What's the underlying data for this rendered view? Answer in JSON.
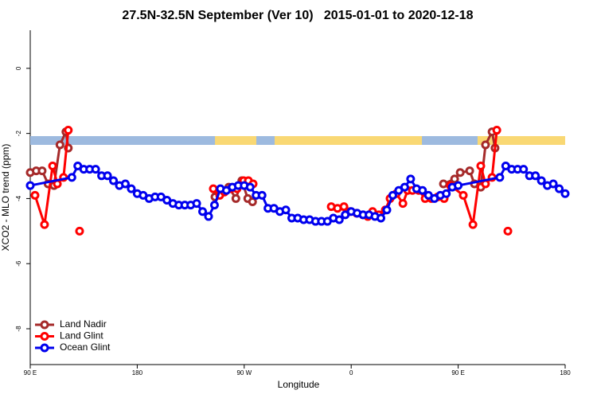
{
  "chart_data": {
    "type": "line",
    "title": "27.5N-32.5N September (Ver 10)   2015-01-01 to 2020-12-18",
    "xlabel": "Longitude",
    "ylabel": "XCO2 - MLO trend (ppm)",
    "xlim": [
      90,
      540
    ],
    "ylim": [
      -9.1,
      1.17
    ],
    "xticks": [
      {
        "value": 90,
        "label": "90 E"
      },
      180,
      {
        "value": 270,
        "label": "90 W"
      },
      {
        "value": 360,
        "label": "0"
      },
      {
        "value": 450,
        "label": "90 E"
      },
      {
        "value": 540,
        "label": "180"
      }
    ],
    "yticks": [
      0,
      -2,
      -4,
      -6,
      -8
    ],
    "legend": "bottom-left",
    "ocean_color": "#9dbadf",
    "land_color": "#f9d874",
    "land_spans": [
      [
        245.4,
        280.2
      ],
      [
        295.6,
        419.5
      ],
      [
        466.3,
        540
      ]
    ],
    "series": [
      {
        "name": "Land Nadir",
        "color": "#a52a2a",
        "x": [
          90,
          95,
          100,
          105,
          110,
          115,
          120,
          122,
          null,
          245.4,
          250,
          257,
          263,
          268,
          273,
          277,
          null,
          437.6,
          447,
          451.7,
          459.7,
          463.7,
          469,
          473,
          478.5,
          481
        ],
        "values": [
          -3.2,
          -3.15,
          -3.15,
          -3.55,
          -3.6,
          -2.35,
          -1.95,
          -2.45,
          null,
          -3.95,
          -3.75,
          -3.65,
          -4.0,
          -3.45,
          -4.0,
          -4.1,
          null,
          -3.55,
          -3.4,
          -3.2,
          -3.15,
          -3.55,
          -3.65,
          -2.35,
          -1.95,
          -2.45
        ]
      },
      {
        "name": "Land Glint",
        "color": "#ff0000",
        "x": [
          94,
          102,
          108.8,
          112.8,
          118,
          122,
          null,
          131.5,
          null,
          244,
          249.4,
          253.4,
          258.8,
          264,
          269.5,
          273.5,
          277.5,
          null,
          343.2,
          348.5,
          353.9,
          359.2,
          364.6,
          369.9,
          374,
          378,
          383.3,
          388.7,
          392.7,
          398,
          403.5,
          407.5,
          411.5,
          416.8,
          422.2,
          427.5,
          432.8,
          438.2,
          443.5,
          454.3,
          462.4,
          469,
          473,
          478.5,
          482.5,
          null,
          491.8
        ],
        "values": [
          -3.9,
          -4.8,
          -3.0,
          -3.55,
          -3.35,
          -1.9,
          null,
          -5.0,
          null,
          -3.7,
          -3.9,
          -3.8,
          -3.7,
          -3.7,
          -3.45,
          -3.45,
          -3.55,
          null,
          -4.25,
          -4.3,
          -4.25,
          -4.4,
          -4.45,
          -4.5,
          -4.55,
          -4.4,
          -4.5,
          -4.35,
          -4.0,
          -3.85,
          -4.15,
          -3.75,
          -3.75,
          -3.75,
          -4.0,
          -4.0,
          -3.95,
          -4.0,
          -3.6,
          -3.9,
          -4.8,
          -3.0,
          -3.55,
          -3.35,
          -1.9,
          null,
          -5.0
        ]
      },
      {
        "name": "Ocean Glint",
        "color": "#0000ee",
        "x": [
          90,
          125,
          130,
          135,
          140,
          145,
          150,
          155,
          160,
          165,
          170,
          175,
          180,
          185,
          190,
          195,
          200,
          205,
          210,
          215,
          220,
          225,
          230,
          235,
          240,
          245,
          250,
          255,
          260,
          265,
          270,
          275,
          280,
          285,
          290,
          295,
          300,
          305,
          310,
          315,
          320,
          325,
          330,
          335,
          340,
          345,
          350,
          355,
          360,
          365,
          370,
          375,
          380,
          385,
          390,
          395,
          400,
          405,
          410,
          415,
          420,
          425,
          430,
          435,
          440,
          445,
          450,
          485,
          490,
          495,
          500,
          505,
          510,
          515,
          520,
          525,
          530,
          535,
          540
        ],
        "values": [
          -3.6,
          -3.35,
          -3.0,
          -3.1,
          -3.1,
          -3.1,
          -3.3,
          -3.3,
          -3.45,
          -3.6,
          -3.55,
          -3.7,
          -3.85,
          -3.9,
          -4.0,
          -3.95,
          -3.95,
          -4.05,
          -4.15,
          -4.2,
          -4.2,
          -4.2,
          -4.15,
          -4.4,
          -4.55,
          -4.2,
          -3.7,
          -3.75,
          -3.65,
          -3.6,
          -3.6,
          -3.65,
          -3.9,
          -3.9,
          -4.3,
          -4.3,
          -4.4,
          -4.35,
          -4.6,
          -4.6,
          -4.65,
          -4.65,
          -4.7,
          -4.7,
          -4.7,
          -4.6,
          -4.65,
          -4.5,
          -4.4,
          -4.45,
          -4.5,
          -4.5,
          -4.55,
          -4.6,
          -4.35,
          -3.9,
          -3.75,
          -3.65,
          -3.4,
          -3.7,
          -3.75,
          -3.9,
          -4.0,
          -3.9,
          -3.85,
          -3.65,
          -3.6,
          -3.35,
          -3.0,
          -3.1,
          -3.1,
          -3.1,
          -3.3,
          -3.3,
          -3.45,
          -3.6,
          -3.55,
          -3.7,
          -3.85
        ]
      }
    ]
  }
}
